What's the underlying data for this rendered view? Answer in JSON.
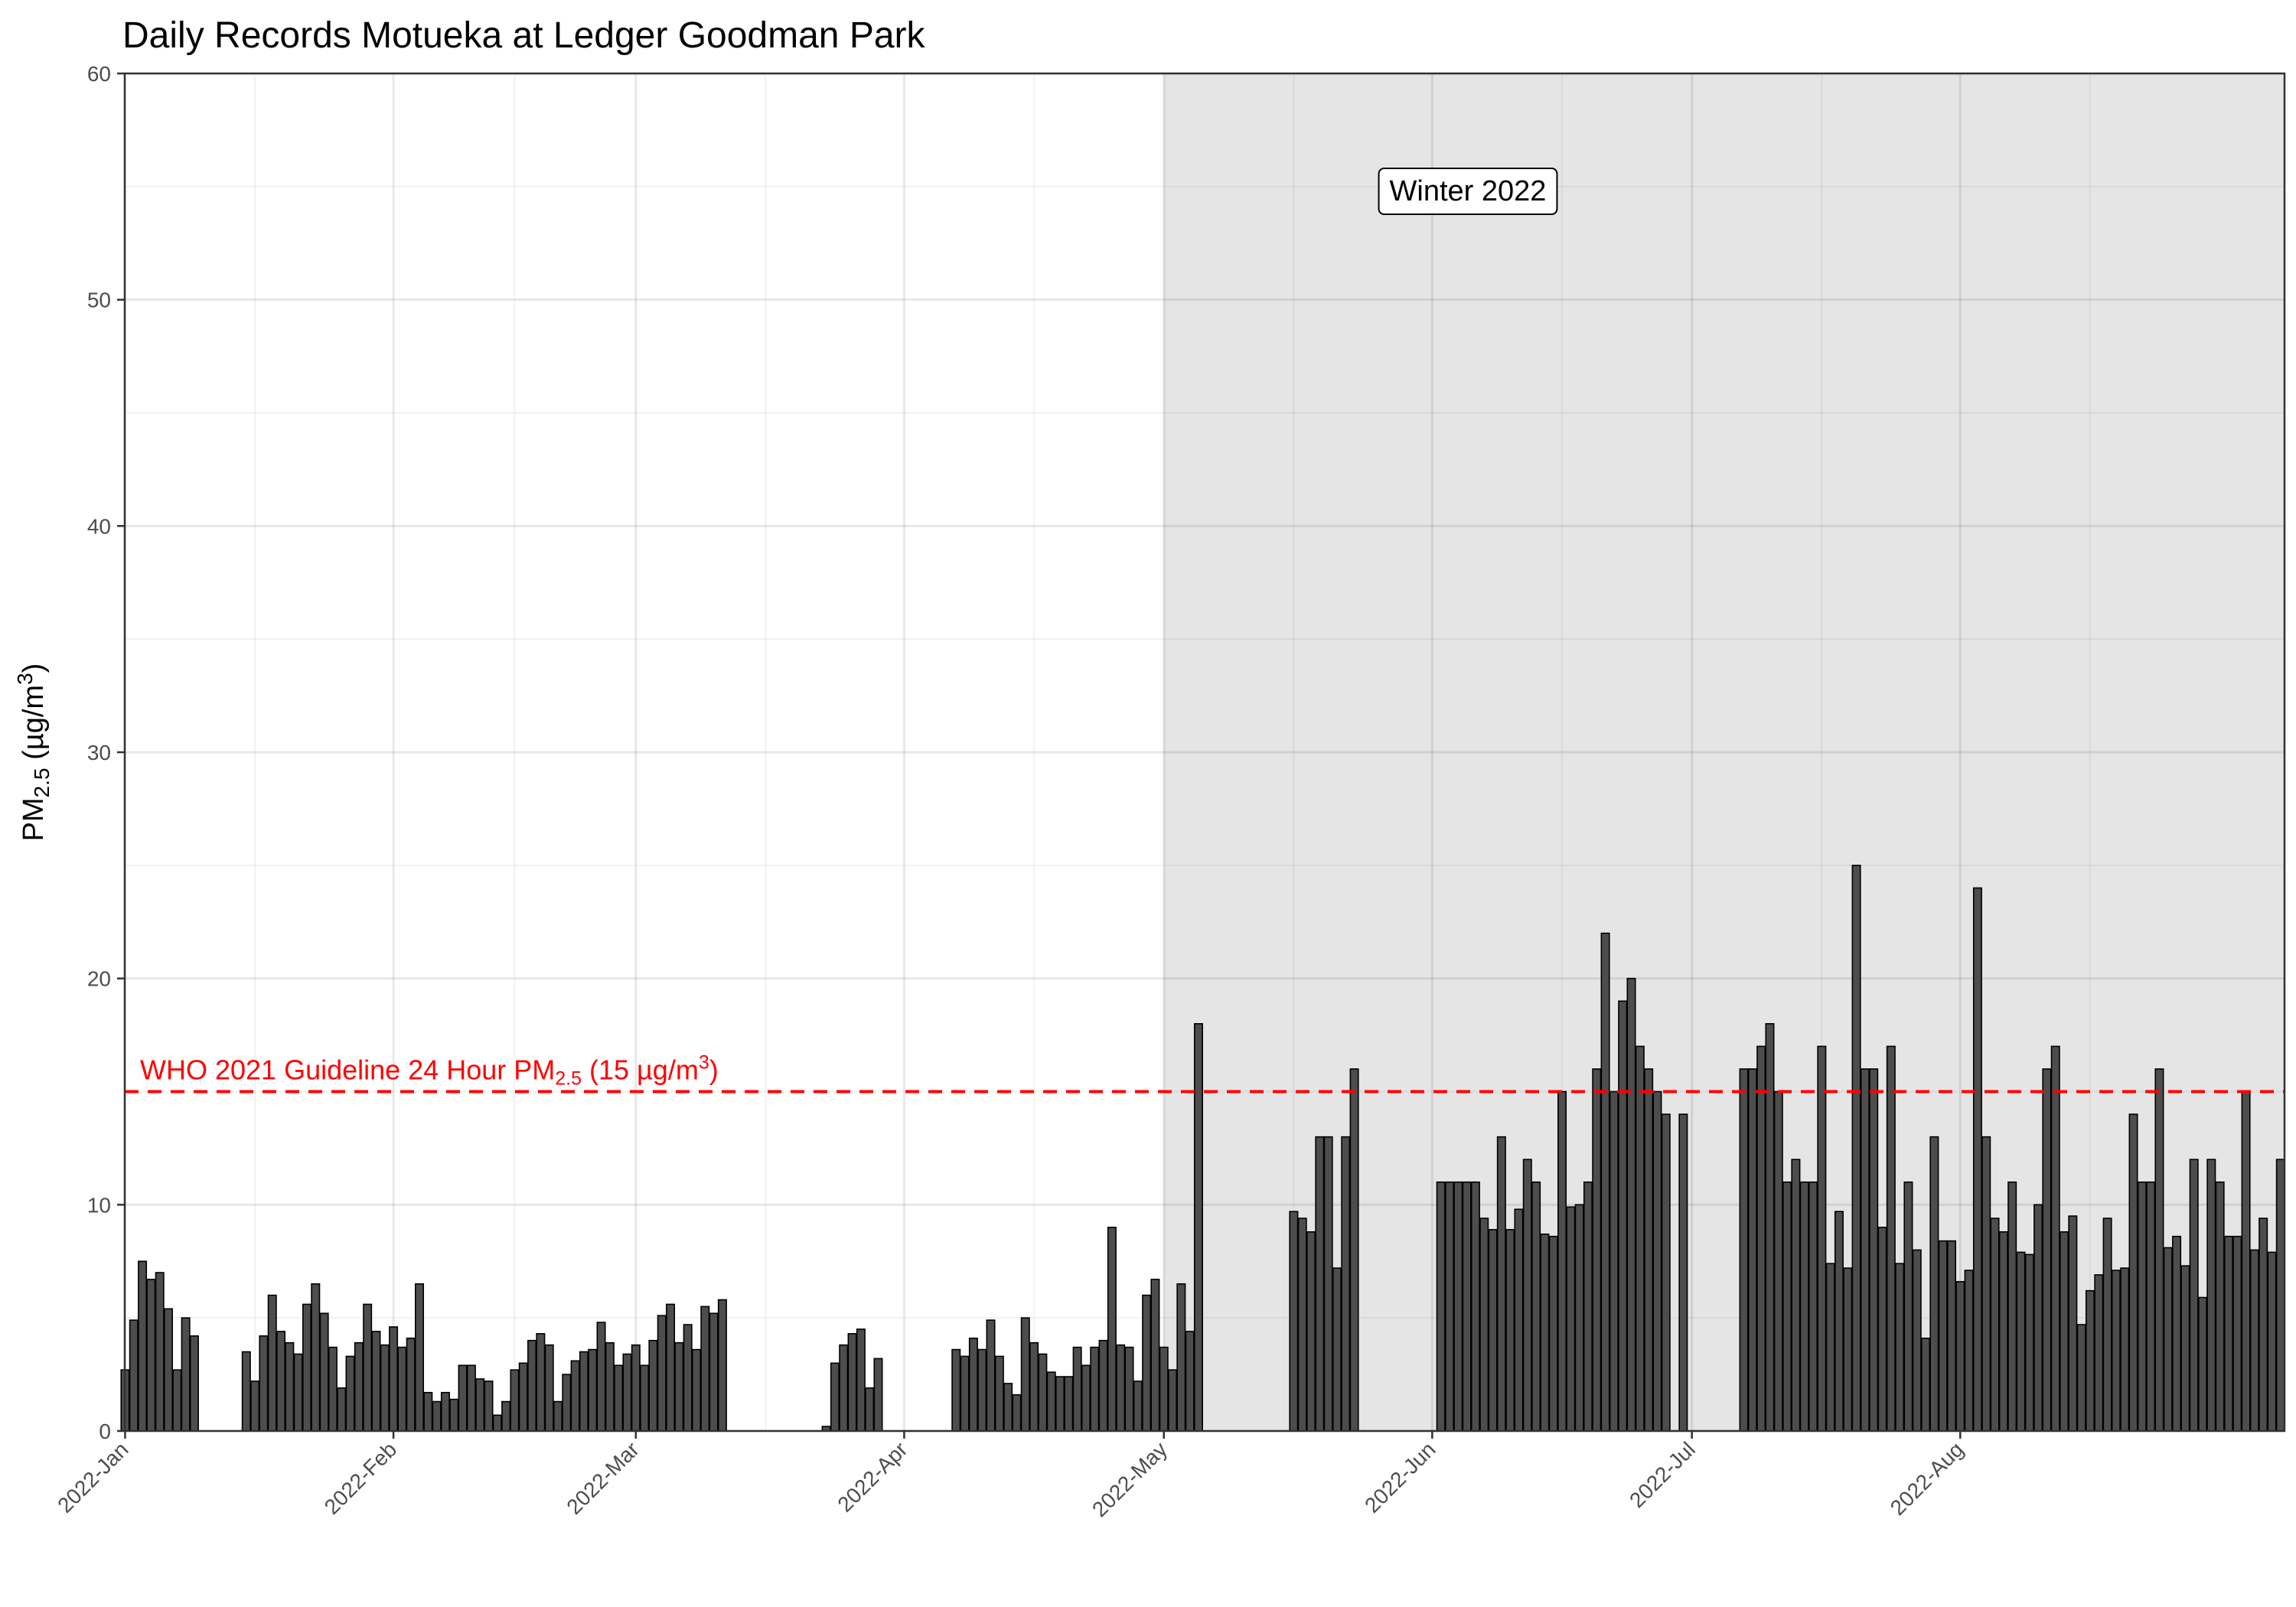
{
  "chart_data": {
    "type": "bar",
    "title": "Daily Records Motueka at Ledger Goodman Park",
    "ylabel": {
      "base": "PM",
      "sub": "2.5",
      "unit_open": " (µg/m",
      "sup": "3",
      "unit_close": ")"
    },
    "ylim": [
      0,
      60
    ],
    "yticks": [
      0,
      10,
      20,
      30,
      40,
      50,
      60
    ],
    "x_start": "2022-01-01",
    "x_end": "2022-08-31",
    "xticks": [
      {
        "date": "2022-01-01",
        "label": "2022-Jan"
      },
      {
        "date": "2022-02-01",
        "label": "2022-Feb"
      },
      {
        "date": "2022-03-01",
        "label": "2022-Mar"
      },
      {
        "date": "2022-04-01",
        "label": "2022-Apr"
      },
      {
        "date": "2022-05-01",
        "label": "2022-May"
      },
      {
        "date": "2022-06-01",
        "label": "2022-Jun"
      },
      {
        "date": "2022-07-01",
        "label": "2022-Jul"
      },
      {
        "date": "2022-08-01",
        "label": "2022-Aug"
      }
    ],
    "grid": true,
    "reference_line": {
      "value": 15,
      "color": "#ff0000",
      "label_pre": "WHO 2021 Guideline 24 Hour PM",
      "label_sub": "2.5",
      "label_mid": " (15 µg/m",
      "label_sup": "3",
      "label_post": ")"
    },
    "shaded_region": {
      "start": "2022-05-01",
      "end": "2022-08-31",
      "label": "Winter 2022",
      "color": "#e5e5e5"
    },
    "bar_fill": "#4d4d4d",
    "bar_stroke": "#000000",
    "series": [
      {
        "values": [
          2.7,
          4.9,
          7.5,
          6.7,
          7.0,
          5.4,
          2.7,
          5.0,
          4.2,
          null,
          null,
          null,
          null,
          null,
          3.5,
          2.2,
          4.2,
          6.0,
          4.4,
          3.9,
          3.4,
          5.6,
          6.5,
          5.2,
          3.7,
          1.9,
          3.3,
          3.9,
          5.6,
          4.4,
          3.8,
          4.6,
          3.7,
          4.1,
          6.5,
          1.7,
          1.3,
          1.7,
          1.4,
          2.9,
          2.9,
          2.3,
          2.2,
          0.7,
          1.3,
          2.7,
          3.0,
          4.0,
          4.3,
          3.8,
          1.3,
          2.5,
          3.1,
          3.5,
          3.6,
          4.8,
          3.9,
          2.9,
          3.4,
          3.8,
          2.9,
          4.0,
          5.1,
          5.6,
          3.9,
          4.7,
          3.6,
          5.5,
          5.2,
          5.8,
          null,
          null,
          null,
          null,
          null,
          null,
          null,
          null,
          null,
          null,
          null,
          0.2,
          3.0,
          3.8,
          4.3,
          4.5,
          1.9,
          3.2,
          null,
          null,
          null,
          null,
          null,
          null,
          null,
          null,
          3.6,
          3.3,
          4.1,
          3.6,
          4.9,
          3.3,
          2.1,
          1.6,
          5.0,
          3.9,
          3.4,
          2.6,
          2.4,
          2.4,
          3.7,
          2.9,
          3.7,
          4.0,
          9.0,
          3.8,
          3.7,
          2.2,
          6.0,
          6.7,
          3.7,
          2.7,
          6.5,
          4.4,
          18.0,
          null,
          null,
          null,
          null,
          null,
          null,
          null,
          null,
          null,
          null,
          9.7,
          9.4,
          8.8,
          13.0,
          13.0,
          7.2,
          13.0,
          16.0,
          null,
          null,
          null,
          null,
          null,
          null,
          null,
          null,
          null,
          11.0,
          11.0,
          11.0,
          11.0,
          11.0,
          9.4,
          8.9,
          13.0,
          8.9,
          9.8,
          12.0,
          11.0,
          8.7,
          8.6,
          15.0,
          9.9,
          10.0,
          11.0,
          16.0,
          22.0,
          15.0,
          19.0,
          20.0,
          17.0,
          16.0,
          15.0,
          14.0,
          null,
          14.0,
          null,
          null,
          null,
          null,
          null,
          null,
          16.0,
          16.0,
          17.0,
          18.0,
          15.0,
          11.0,
          12.0,
          11.0,
          11.0,
          17.0,
          7.4,
          9.7,
          7.2,
          25.0,
          16.0,
          16.0,
          9.0,
          17.0,
          7.4,
          11.0,
          8.0,
          4.1,
          13.0,
          8.4,
          8.4,
          6.6,
          7.1,
          24.0,
          13.0,
          9.4,
          8.8,
          11.0,
          7.9,
          7.8,
          10.0,
          16.0,
          17.0,
          8.8,
          9.5,
          4.7,
          6.2,
          6.9,
          9.4,
          7.1,
          7.2,
          14.0,
          11.0,
          11.0,
          16.0,
          8.1,
          8.6,
          7.3,
          12.0,
          5.9,
          12.0,
          11.0,
          8.6,
          8.6,
          15.0,
          8.0,
          9.4,
          7.9,
          12.0
        ]
      }
    ]
  }
}
